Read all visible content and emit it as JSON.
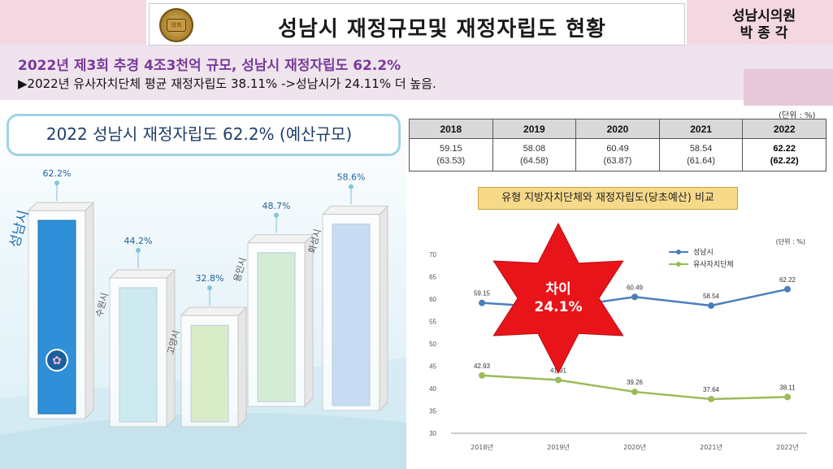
{
  "header": {
    "title": "성남시 재정규모및 재정자립도 현황",
    "author_line1": "성남시의원",
    "author_line2": "박 종 각",
    "seal_text": "의회"
  },
  "summary": {
    "line1": "2022년 제3회 추경 4조3천억 규모, 성남시 재정자립도 62.2%",
    "line2": "▶2022년 유사자치단체 평균 재정자립도 38.11% ->성남시가 24.11% 더 높음."
  },
  "left_chart": {
    "header": "2022 성남시 재정자립도 62.2% (예산규모)"
  },
  "table": {
    "unit": "(단위 : %)",
    "years": [
      "2018",
      "2019",
      "2020",
      "2021",
      "2022"
    ],
    "values": [
      "59.15",
      "58.08",
      "60.49",
      "58.54",
      "62.22"
    ],
    "sub_values": [
      "(63.53)",
      "(64.58)",
      "(63.87)",
      "(61.64)",
      "(62.22)"
    ]
  },
  "line_chart_header": "유형 지방자치단체와 재정자립도(당초예산) 비교",
  "star": {
    "line1": "차이",
    "line2": "24.1%"
  },
  "colors": {
    "bar_blue": "#2f8fd8",
    "line_seongnam": "#4a7ebb",
    "line_similar": "#9bbb59",
    "star_red": "#e8141a",
    "subtitle_purple": "#7a3b9a"
  },
  "chart_data": [
    {
      "type": "bar",
      "categories": [
        "성남시",
        "수원시",
        "고양시",
        "용인시",
        "화성시"
      ],
      "values": [
        62.2,
        44.2,
        32.8,
        48.7,
        58.6
      ],
      "value_labels": [
        "62.2%",
        "44.2%",
        "32.8%",
        "48.7%",
        "58.6%"
      ],
      "colors": [
        "#2f8fd8",
        "#cdeaf0",
        "#d9ecc8",
        "#d4ecd6",
        "#c7dcf2"
      ],
      "title": "2022 성남시 재정자립도 62.2% (예산규모)"
    },
    {
      "type": "line",
      "x": [
        "2018년",
        "2019년",
        "2020년",
        "2021년",
        "2022년"
      ],
      "series": [
        {
          "name": "성남시",
          "values": [
            59.15,
            58.08,
            60.49,
            58.54,
            62.22
          ]
        },
        {
          "name": "유사자치단체",
          "values": [
            42.93,
            41.91,
            39.26,
            37.64,
            38.11
          ]
        }
      ],
      "ylim": [
        30,
        70
      ],
      "yticks": [
        "30",
        "35",
        "40",
        "45",
        "50",
        "55",
        "60",
        "65",
        "70"
      ],
      "unit": "(단위 : %)",
      "legend": "top-right"
    }
  ]
}
